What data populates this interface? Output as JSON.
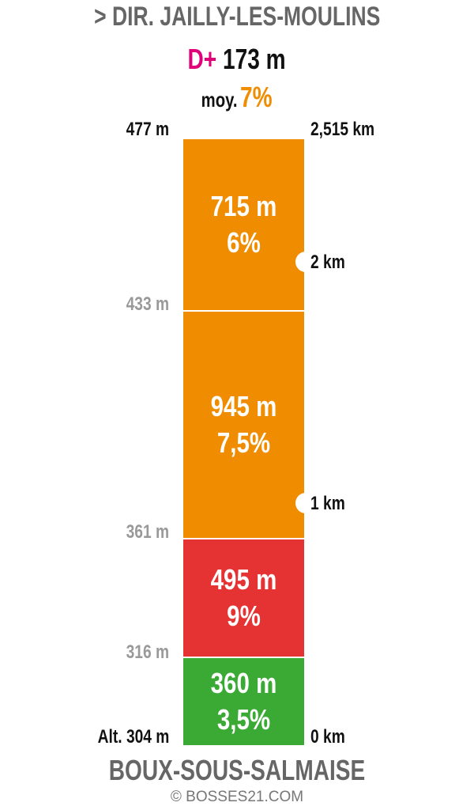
{
  "header": {
    "title": "> DIR. JAILLY-LES-MOULINS",
    "gain_prefix": "D+",
    "gain": "173 m",
    "avg_prefix": "moy.",
    "avg": "7%"
  },
  "segments": [
    {
      "length": "715 m",
      "grade": "6%",
      "color": "#f08c00"
    },
    {
      "length": "945 m",
      "grade": "7,5%",
      "color": "#f08c00"
    },
    {
      "length": "495 m",
      "grade": "9%",
      "color": "#e53232"
    },
    {
      "length": "360 m",
      "grade": "3,5%",
      "color": "#3aaa35"
    }
  ],
  "altitudes": [
    "477 m",
    "433 m",
    "361 m",
    "316 m",
    "Alt. 304 m"
  ],
  "distances": [
    "2,515 km",
    "2 km",
    "1 km",
    "0 km"
  ],
  "footer": {
    "start": "BOUX-SOUS-SALMAISE",
    "credit": "© BOSSES21.COM"
  }
}
